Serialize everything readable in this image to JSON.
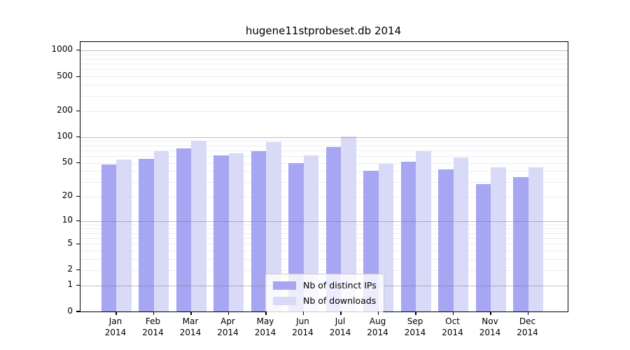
{
  "figure": {
    "title": "hugene11stprobeset.db 2014"
  },
  "legend": {
    "items": [
      {
        "label": "Nb of distinct IPs",
        "color": "#a6a6f2"
      },
      {
        "label": "Nb of downloads",
        "color": "#d9d9f8"
      }
    ]
  },
  "y_axis": {
    "tick_values": [
      0,
      1,
      2,
      5,
      10,
      20,
      50,
      100,
      200,
      500,
      1000
    ],
    "tick_labels": [
      "0",
      "1",
      "2",
      "5",
      "10",
      "20",
      "50",
      "100",
      "200",
      "500",
      "1000"
    ],
    "major_grid_values": [
      1,
      10,
      100,
      1000
    ],
    "minor_grid_values": [
      2,
      3,
      4,
      5,
      6,
      7,
      8,
      9,
      20,
      30,
      40,
      50,
      60,
      70,
      80,
      90,
      200,
      300,
      400,
      500,
      600,
      700,
      800,
      900
    ],
    "scale": "log1p"
  },
  "x_axis": {
    "tick_labels": [
      [
        "Jan",
        "2014"
      ],
      [
        "Feb",
        "2014"
      ],
      [
        "Mar",
        "2014"
      ],
      [
        "Apr",
        "2014"
      ],
      [
        "May",
        "2014"
      ],
      [
        "Jun",
        "2014"
      ],
      [
        "Jul",
        "2014"
      ],
      [
        "Aug",
        "2014"
      ],
      [
        "Sep",
        "2014"
      ],
      [
        "Oct",
        "2014"
      ],
      [
        "Nov",
        "2014"
      ],
      [
        "Dec",
        "2014"
      ]
    ]
  },
  "chart_data": {
    "type": "bar",
    "title": "hugene11stprobeset.db 2014",
    "categories": [
      "Jan 2014",
      "Feb 2014",
      "Mar 2014",
      "Apr 2014",
      "May 2014",
      "Jun 2014",
      "Jul 2014",
      "Aug 2014",
      "Sep 2014",
      "Oct 2014",
      "Nov 2014",
      "Dec 2014"
    ],
    "series": [
      {
        "name": "Nb of distinct IPs",
        "color": "#a6a6f2",
        "values": [
          48,
          56,
          74,
          61,
          69,
          50,
          76,
          40,
          52,
          42,
          28,
          34
        ]
      },
      {
        "name": "Nb of downloads",
        "color": "#d9d9f8",
        "values": [
          55,
          69,
          90,
          65,
          87,
          61,
          102,
          49,
          69,
          58,
          44,
          44
        ]
      }
    ],
    "xlabel": "",
    "ylabel": "",
    "yscale": "log1p",
    "ylim": [
      0,
      1200
    ],
    "grid": true,
    "legend_position": "lower center"
  },
  "colors": {
    "bar_ips": "#a6a6f2",
    "bar_downloads": "#d9d9f8",
    "grid_minor": "#ededf2",
    "grid_major": "rgba(115,115,115,0.45)",
    "spine": "#000000",
    "legend_border": "#cccccc"
  }
}
